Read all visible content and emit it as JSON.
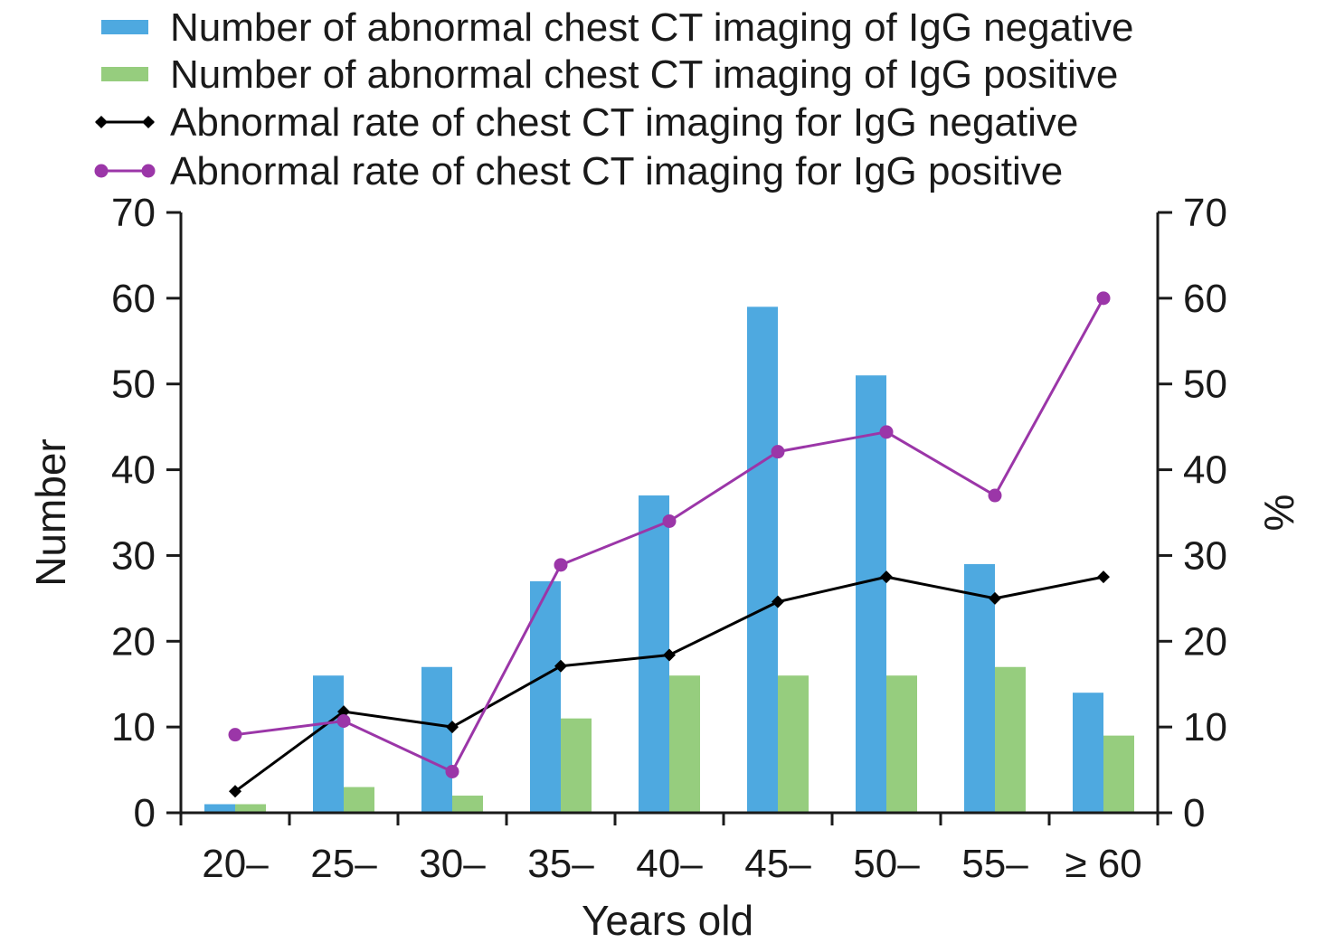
{
  "chart_data": {
    "type": "bar",
    "categories": [
      "20–",
      "25–",
      "30–",
      "35–",
      "40–",
      "45–",
      "50–",
      "55–",
      "≥ 60"
    ],
    "xlabel": "Years old",
    "ylabel": "Number",
    "y2label": "%",
    "ylim": [
      0,
      70
    ],
    "y2lim": [
      0,
      70
    ],
    "yticks": [
      0,
      10,
      20,
      30,
      40,
      50,
      60,
      70
    ],
    "y2ticks": [
      0,
      10,
      20,
      30,
      40,
      50,
      60,
      70
    ],
    "grid": false,
    "legend_position": "top",
    "series": [
      {
        "name": "Number of abnormal chest CT imaging of IgG negative",
        "type": "bar",
        "axis": "left",
        "color": "#4EA9E0",
        "values": [
          1,
          16,
          17,
          27,
          37,
          59,
          51,
          29,
          14
        ]
      },
      {
        "name": "Number of abnormal chest CT imaging of IgG positive",
        "type": "bar",
        "axis": "left",
        "color": "#96CD7E",
        "values": [
          1,
          3,
          2,
          11,
          16,
          16,
          16,
          17,
          9
        ]
      },
      {
        "name": "Abnormal rate of chest CT imaging for IgG negative",
        "type": "line",
        "axis": "right",
        "marker": "diamond",
        "color": "#000000",
        "values": [
          2.5,
          11.8,
          10,
          17.1,
          18.4,
          24.6,
          27.5,
          25,
          27.5
        ]
      },
      {
        "name": "Abnormal rate of chest CT imaging for IgG positive",
        "type": "line",
        "axis": "right",
        "marker": "circle",
        "color": "#9B36A8",
        "values": [
          9.1,
          10.7,
          4.8,
          28.9,
          34,
          42.1,
          44.4,
          37,
          60
        ]
      }
    ]
  }
}
